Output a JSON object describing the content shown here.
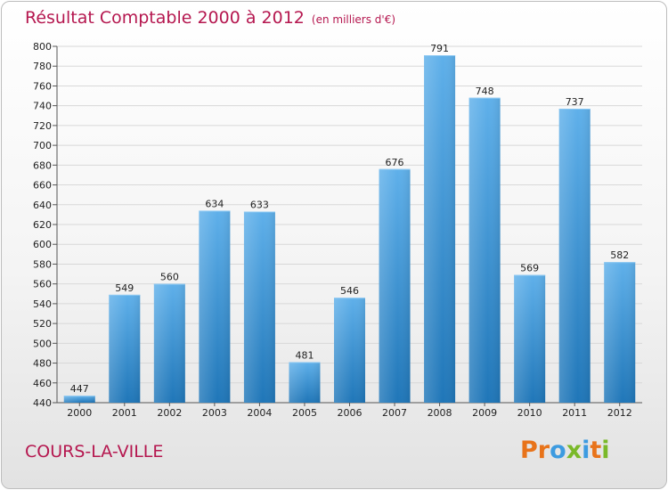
{
  "header": {
    "title": "Résultat Comptable 2000 à 2012",
    "subtitle": "(en milliers d'€)"
  },
  "footer": {
    "city": "COURS-LA-VILLE",
    "logo_letters": [
      "P",
      "r",
      "o",
      "x",
      "i",
      "t",
      "i"
    ],
    "logo_colors": [
      "#e8731a",
      "#e8731a",
      "#3d9be0",
      "#7ab929",
      "#3d9be0",
      "#e8731a",
      "#7ab929"
    ]
  },
  "colors": {
    "bar_light": "#5fb0ea",
    "bar_dark": "#1f76b8",
    "title": "#b5174f",
    "grid": "#d8d8d8"
  },
  "chart_data": {
    "type": "bar",
    "title": "Résultat Comptable 2000 à 2012",
    "subtitle": "(en milliers d'€)",
    "xlabel": "",
    "ylabel": "",
    "categories": [
      "2000",
      "2001",
      "2002",
      "2003",
      "2004",
      "2005",
      "2006",
      "2007",
      "2008",
      "2009",
      "2010",
      "2011",
      "2012"
    ],
    "values": [
      447,
      549,
      560,
      634,
      633,
      481,
      546,
      676,
      791,
      748,
      569,
      737,
      582
    ],
    "data_labels": [
      "447",
      "549",
      "560",
      "634",
      "633",
      "481",
      "546",
      "676",
      "791",
      "748",
      "569",
      "737",
      "582"
    ],
    "ylim": [
      440,
      800
    ],
    "yticks": [
      440,
      460,
      480,
      500,
      520,
      540,
      560,
      580,
      600,
      620,
      640,
      660,
      680,
      700,
      720,
      740,
      760,
      780,
      800
    ],
    "ytick_labels": [
      "440",
      "460",
      "480",
      "500",
      "520",
      "540",
      "560",
      "580",
      "600",
      "620",
      "640",
      "660",
      "680",
      "700",
      "720",
      "740",
      "760",
      "780",
      "800"
    ],
    "grid": true,
    "legend": "none"
  }
}
